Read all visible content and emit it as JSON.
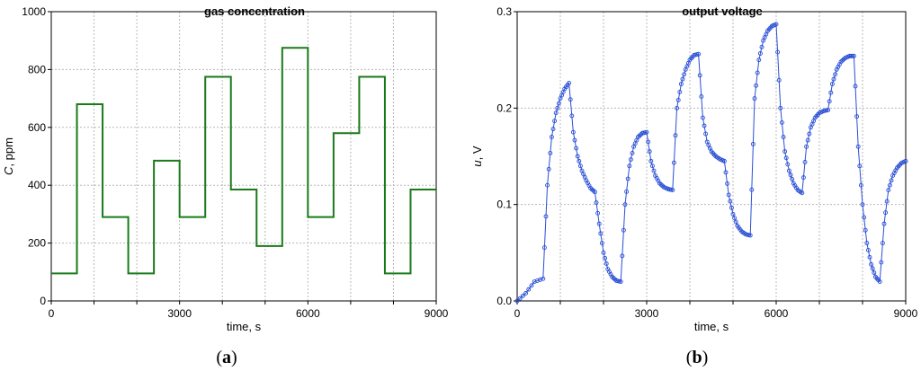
{
  "chart_data": [
    {
      "type": "line",
      "title": "gas concentration",
      "xlabel": "time, s",
      "ylabel_italic": "C",
      "ylabel_rest": ", ppm",
      "xlim": [
        0,
        9000
      ],
      "ylim": [
        0,
        1000
      ],
      "xticks": [
        "0",
        "3000",
        "6000",
        "9000"
      ],
      "yticks": [
        "0",
        "200",
        "400",
        "600",
        "800",
        "1000"
      ],
      "panel_label": "a",
      "grid": true,
      "line_color": "#1a7a1a",
      "series": [
        {
          "x": [
            0,
            600,
            600,
            1200,
            1200,
            1800,
            1800,
            2400,
            2400,
            3000,
            3000,
            3600,
            3600,
            4200,
            4200,
            4800,
            4800,
            5400,
            5400,
            6000,
            6000,
            6600,
            6600,
            7200,
            7200,
            7800,
            7800,
            8400,
            8400,
            9000
          ],
          "y": [
            95,
            95,
            680,
            680,
            290,
            290,
            95,
            95,
            485,
            485,
            290,
            290,
            775,
            775,
            385,
            385,
            190,
            190,
            875,
            875,
            290,
            290,
            580,
            580,
            775,
            775,
            95,
            95,
            385,
            385
          ]
        }
      ]
    },
    {
      "type": "line",
      "title": "output voltage",
      "xlabel": "time, s",
      "ylabel_italic": "u",
      "ylabel_rest": ", V",
      "xlim": [
        0,
        9000
      ],
      "ylim": [
        0,
        0.3
      ],
      "xticks": [
        "0",
        "3000",
        "6000",
        "9000"
      ],
      "yticks": [
        "0.0",
        "0.1",
        "0.2",
        "0.3"
      ],
      "panel_label": "b",
      "grid": true,
      "line_color": "#2a4fd6",
      "marker": "circle",
      "series": [
        {
          "x": [
            0,
            200,
            400,
            600,
            700,
            800,
            900,
            1000,
            1100,
            1200,
            1300,
            1400,
            1500,
            1600,
            1700,
            1800,
            1900,
            2000,
            2100,
            2200,
            2300,
            2400,
            2500,
            2600,
            2700,
            2800,
            2900,
            3000,
            3100,
            3200,
            3300,
            3400,
            3500,
            3600,
            3700,
            3800,
            3900,
            4000,
            4100,
            4200,
            4300,
            4400,
            4500,
            4600,
            4700,
            4800,
            4900,
            5000,
            5100,
            5200,
            5300,
            5400,
            5500,
            5600,
            5700,
            5800,
            5900,
            6000,
            6100,
            6200,
            6300,
            6400,
            6500,
            6600,
            6700,
            6800,
            6900,
            7000,
            7100,
            7200,
            7300,
            7400,
            7500,
            7600,
            7700,
            7800,
            7900,
            8000,
            8100,
            8200,
            8300,
            8400,
            8500,
            8600,
            8700,
            8800,
            8900,
            9000
          ],
          "y": [
            0.0,
            0.008,
            0.02,
            0.023,
            0.12,
            0.17,
            0.195,
            0.21,
            0.22,
            0.226,
            0.175,
            0.15,
            0.135,
            0.125,
            0.117,
            0.113,
            0.08,
            0.05,
            0.033,
            0.025,
            0.021,
            0.02,
            0.1,
            0.14,
            0.16,
            0.17,
            0.174,
            0.175,
            0.145,
            0.13,
            0.122,
            0.118,
            0.116,
            0.115,
            0.2,
            0.225,
            0.24,
            0.25,
            0.255,
            0.256,
            0.19,
            0.165,
            0.155,
            0.15,
            0.147,
            0.145,
            0.11,
            0.09,
            0.078,
            0.072,
            0.069,
            0.068,
            0.21,
            0.25,
            0.27,
            0.28,
            0.285,
            0.287,
            0.2,
            0.155,
            0.135,
            0.122,
            0.115,
            0.112,
            0.16,
            0.18,
            0.19,
            0.195,
            0.197,
            0.198,
            0.225,
            0.24,
            0.248,
            0.252,
            0.254,
            0.254,
            0.16,
            0.1,
            0.06,
            0.038,
            0.025,
            0.02,
            0.08,
            0.115,
            0.13,
            0.138,
            0.143,
            0.145
          ]
        }
      ]
    }
  ]
}
